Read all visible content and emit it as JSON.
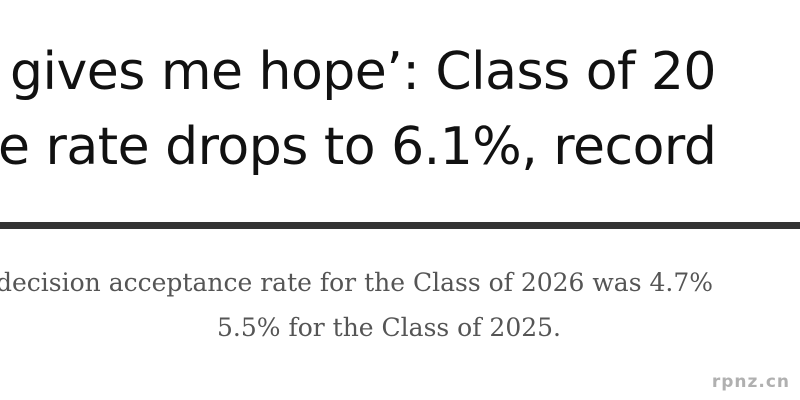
{
  "headline": {
    "lines": [
      "gives me hope’: Class of 20",
      "e rate drops to 6.1%, record"
    ]
  },
  "subheadline": {
    "lines": [
      "decision acceptance rate for the Class of 2026 was 4.7%",
      "5.5% for the Class of 2025."
    ]
  },
  "watermark": "rpnz.cn"
}
